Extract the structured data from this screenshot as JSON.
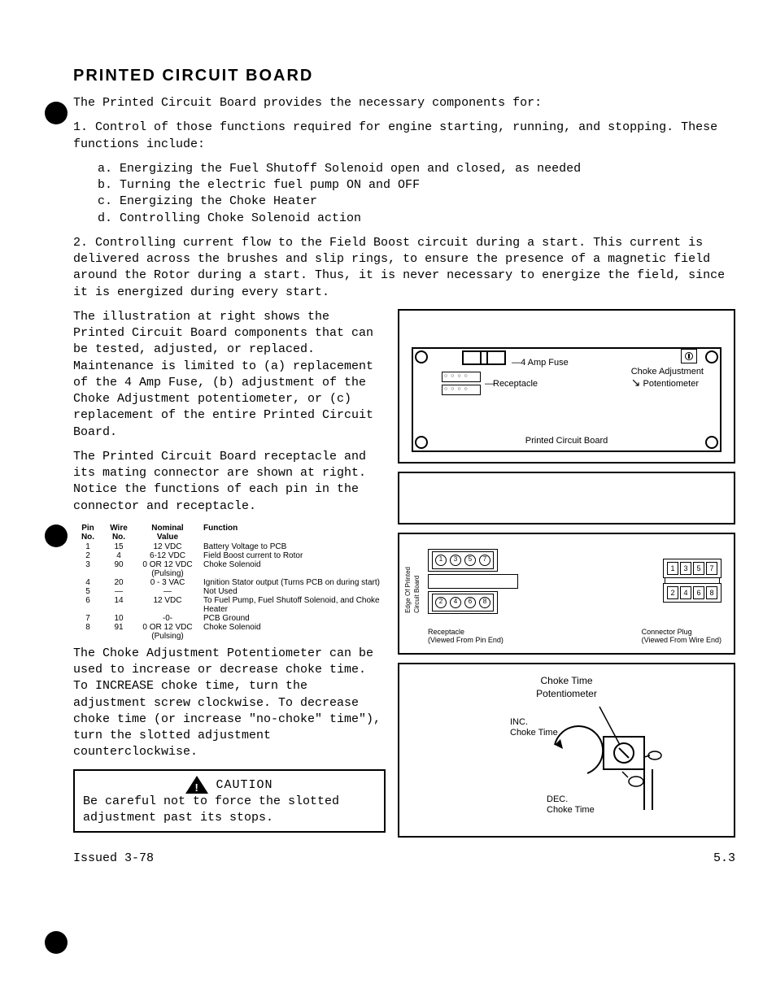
{
  "title": "PRINTED CIRCUIT BOARD",
  "intro": "The Printed Circuit Board provides the necessary components for:",
  "para1a": "1. Control of those functions required for engine starting, running, and stopping. These functions include:",
  "sub_a": "a. Energizing the Fuel Shutoff Solenoid open and closed, as needed",
  "sub_b": "b. Turning the electric fuel pump ON and OFF",
  "sub_c": "c. Energizing the Choke Heater",
  "sub_d": "d. Controlling Choke Solenoid action",
  "para2": "2. Controlling current flow to the Field Boost circuit during a start. This current is delivered across the brushes and slip rings, to ensure the presence of a magnetic field around the Rotor during a start. Thus, it is never necessary to energize the field, since it is energized during every start.",
  "para3": "The illustration at right shows the Printed Circuit Board components that can be tested, adjusted, or replaced. Maintenance is limited to (a) replacement of the 4 Amp Fuse, (b) adjustment of the Choke Adjustment potentiometer, or (c) replacement of the entire Printed Circuit Board.",
  "para4": "The Printed Circuit Board receptacle and its mating connector are shown at right. Notice the functions of each pin in the connector and receptacle.",
  "para5": "The Choke Adjustment Potentiometer can be used to increase or decrease choke time. To INCREASE choke time, turn the adjustment screw clockwise. To decrease choke time (or increase \"no-choke\" time\"), turn the slotted adjustment counterclockwise.",
  "caution_label": "CAUTION",
  "caution_text": "Be careful not to force the slotted adjustment past its stops.",
  "issued": "Issued 3-78",
  "page_num": "5.3",
  "fig1": {
    "fuse_label": "4 Amp Fuse",
    "choke_adj": "Choke Adjustment",
    "pot": "Potentiometer",
    "recept": "Receptacle",
    "pcb": "Printed Circuit Board"
  },
  "fig3": {
    "edge_label": "Edge Of Printed\nCircuit Board",
    "recept_label": "Receptacle",
    "recept_sub": "(Viewed From Pin End)",
    "plug_label": "Connector Plug",
    "plug_sub": "(Viewed From Wire End)",
    "pins_top": [
      "1",
      "3",
      "5",
      "7"
    ],
    "pins_bot": [
      "2",
      "4",
      "6",
      "8"
    ]
  },
  "fig4": {
    "title": "Choke Time",
    "sub": "Potentiometer",
    "inc": "INC.",
    "inc2": "Choke Time",
    "dec": "DEC.",
    "dec2": "Choke Time"
  },
  "table": {
    "headers": [
      "Pin\nNo.",
      "Wire\nNo.",
      "Nominal\nValue",
      "Function"
    ],
    "rows": [
      [
        "1",
        "15",
        "12 VDC",
        "Battery Voltage to PCB"
      ],
      [
        "2",
        "4",
        "6-12 VDC",
        "Field Boost current to Rotor"
      ],
      [
        "3",
        "90",
        "0 OR 12 VDC\n(Pulsing)",
        "Choke Solenoid"
      ],
      [
        "4",
        "20",
        "0 - 3 VAC",
        "Ignition Stator output (Turns PCB on during start)"
      ],
      [
        "5",
        "—",
        "—",
        "Not Used"
      ],
      [
        "6",
        "14",
        "12 VDC",
        "To Fuel Pump, Fuel Shutoff Solenoid, and Choke Heater"
      ],
      [
        "7",
        "10",
        "-0-",
        "PCB Ground"
      ],
      [
        "8",
        "91",
        "0 OR 12 VDC\n(Pulsing)",
        "Choke Solenoid"
      ]
    ]
  }
}
